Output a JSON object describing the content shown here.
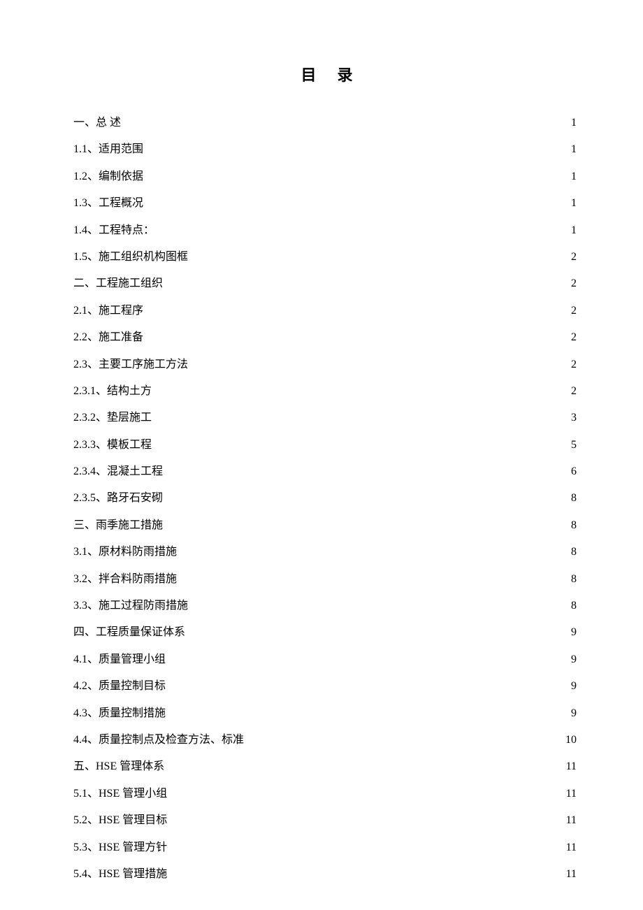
{
  "title": "目录",
  "entries": [
    {
      "label": "一、总  述",
      "page": "1"
    },
    {
      "label": "1.1、适用范围",
      "page": "1"
    },
    {
      "label": "1.2、编制依据",
      "page": "1"
    },
    {
      "label": "1.3、工程概况",
      "page": "1"
    },
    {
      "label": "1.4、工程特点：",
      "page": "1"
    },
    {
      "label": "1.5、施工组织机构图框",
      "page": "2"
    },
    {
      "label": "二、工程施工组织",
      "page": "2"
    },
    {
      "label": "2.1、施工程序",
      "page": "2"
    },
    {
      "label": "2.2、施工准备",
      "page": "2"
    },
    {
      "label": "2.3、主要工序施工方法",
      "page": "2"
    },
    {
      "label": "2.3.1、结构土方",
      "page": "2"
    },
    {
      "label": "2.3.2、垫层施工",
      "page": "3"
    },
    {
      "label": "2.3.3、模板工程",
      "page": "5"
    },
    {
      "label": "2.3.4、混凝土工程",
      "page": "6"
    },
    {
      "label": "2.3.5、路牙石安砌",
      "page": "8"
    },
    {
      "label": "三、雨季施工措施",
      "page": "8"
    },
    {
      "label": "3.1、原材料防雨措施",
      "page": "8"
    },
    {
      "label": "3.2、拌合料防雨措施",
      "page": "8"
    },
    {
      "label": "3.3、施工过程防雨措施",
      "page": "8"
    },
    {
      "label": "四、工程质量保证体系",
      "page": "9"
    },
    {
      "label": "4.1、质量管理小组",
      "page": "9"
    },
    {
      "label": "4.2、质量控制目标",
      "page": "9"
    },
    {
      "label": "4.3、质量控制措施",
      "page": "9"
    },
    {
      "label": "4.4、质量控制点及检查方法、标准",
      "page": "10"
    },
    {
      "label": "五、HSE 管理体系",
      "page": "11"
    },
    {
      "label": "5.1、HSE 管理小组",
      "page": "11"
    },
    {
      "label": "5.2、HSE 管理目标",
      "page": "11"
    },
    {
      "label": "5.3、HSE 管理方针",
      "page": "11"
    },
    {
      "label": "5.4、HSE 管理措施",
      "page": "11"
    }
  ],
  "styling": {
    "background_color": "#ffffff",
    "text_color": "#000000",
    "title_fontsize": 22,
    "entry_fontsize": 16,
    "line_height": 2.4,
    "font_family": "SimSun"
  }
}
